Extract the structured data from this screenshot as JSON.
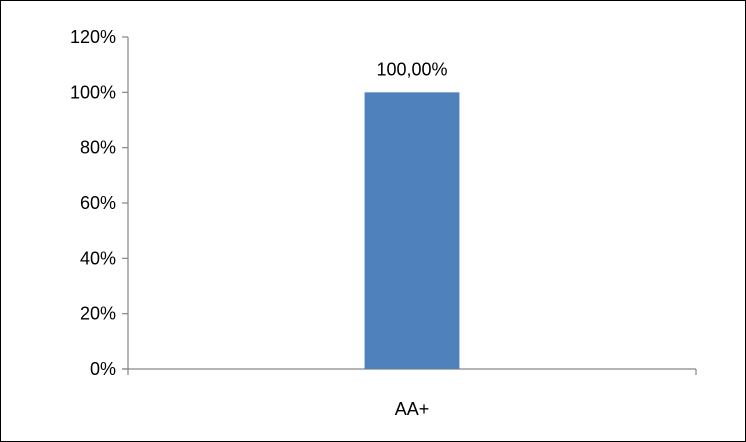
{
  "chart_data": {
    "type": "bar",
    "categories": [
      "AA+"
    ],
    "values": [
      100
    ],
    "data_labels": [
      "100,00%"
    ],
    "y_tick_labels": [
      "0%",
      "20%",
      "40%",
      "60%",
      "80%",
      "100%",
      "120%"
    ],
    "y_ticks": [
      0,
      20,
      40,
      60,
      80,
      100,
      120
    ],
    "ylim": [
      0,
      120
    ],
    "title": "",
    "xlabel": "",
    "ylabel": "",
    "grid": false,
    "legend": "none",
    "bar_color": "#4f81bd",
    "axis_color": "#868686"
  }
}
